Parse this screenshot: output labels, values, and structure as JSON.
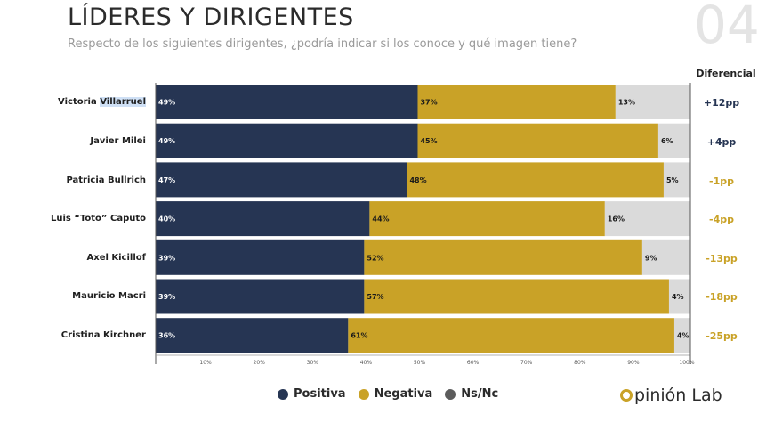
{
  "header": {
    "title": "LÍDERES Y DIRIGENTES",
    "subtitle": "Respecto de los siguientes dirigentes, ¿podría indicar si los conoce y qué imagen tiene?",
    "slide_number": "04",
    "diff_header": "Diferencial"
  },
  "colors": {
    "positiva": "#263553",
    "negativa": "#c9a227",
    "nsnc": "#dadada",
    "diff_pos": "#263553",
    "diff_neg": "#c9a227"
  },
  "leaders": [
    {
      "name_a": "Victoria ",
      "name_b": "Villarruel",
      "diff": "+12pp",
      "diff_sign": "pos"
    },
    {
      "name_a": "Javier Milei",
      "name_b": "",
      "diff": "+4pp",
      "diff_sign": "pos"
    },
    {
      "name_a": "Patricia Bullrich",
      "name_b": "",
      "diff": "-1pp",
      "diff_sign": "neg"
    },
    {
      "name_a": "Luis “Toto” Caputo",
      "name_b": "",
      "diff": "-4pp",
      "diff_sign": "neg"
    },
    {
      "name_a": "Axel Kicillof",
      "name_b": "",
      "diff": "-13pp",
      "diff_sign": "neg"
    },
    {
      "name_a": "Mauricio Macri",
      "name_b": "",
      "diff": "-18pp",
      "diff_sign": "neg"
    },
    {
      "name_a": "Cristina Kirchner",
      "name_b": "",
      "diff": "-25pp",
      "diff_sign": "neg"
    }
  ],
  "legend": {
    "positiva": "Positiva",
    "negativa": "Negativa",
    "nsnc": "Ns/Nc"
  },
  "brand": {
    "text": "pinión Lab"
  },
  "chart_data": {
    "type": "bar",
    "orientation": "horizontal",
    "stacked": true,
    "categories": [
      "Victoria Villarruel",
      "Javier Milei",
      "Patricia Bullrich",
      "Luis “Toto” Caputo",
      "Axel Kicillof",
      "Mauricio Macri",
      "Cristina Kirchner"
    ],
    "series": [
      {
        "name": "Positiva",
        "values": [
          49,
          49,
          47,
          40,
          39,
          39,
          36
        ]
      },
      {
        "name": "Negativa",
        "values": [
          37,
          45,
          48,
          44,
          52,
          57,
          61
        ]
      },
      {
        "name": "Ns/Nc",
        "values": [
          13,
          6,
          5,
          16,
          9,
          4,
          4
        ]
      }
    ],
    "xlim": [
      0,
      100
    ],
    "xticks": [
      "10%",
      "20%",
      "30%",
      "40%",
      "50%",
      "60%",
      "70%",
      "80%",
      "90%",
      "100%"
    ],
    "legend_position": "bottom"
  }
}
